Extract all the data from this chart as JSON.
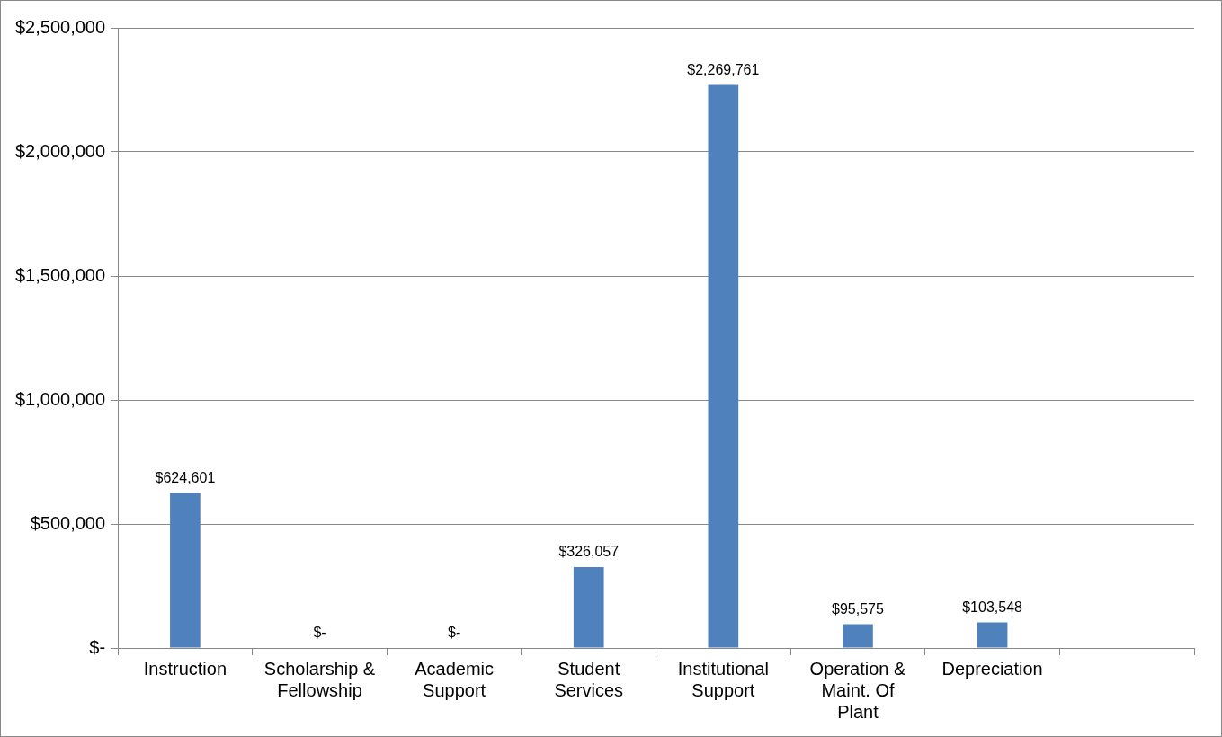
{
  "chart_data": {
    "type": "bar",
    "categories": [
      "Instruction",
      "Scholarship & Fellowship",
      "Academic Support",
      "Student Services",
      "Institutional Support",
      "Operation & Maint. Of Plant",
      "Depreciation",
      null
    ],
    "values": [
      624601,
      0,
      0,
      326057,
      2269761,
      95575,
      103548,
      null
    ],
    "value_labels": [
      "$624,601",
      "$-",
      "$-",
      "$326,057",
      "$2,269,761",
      "$95,575",
      "$103,548",
      null
    ],
    "color": "#4f81bd",
    "ylim": [
      0,
      2500000
    ],
    "yticks": [
      {
        "value": 0,
        "label": "$-"
      },
      {
        "value": 500000,
        "label": "$500,000"
      },
      {
        "value": 1000000,
        "label": "$1,000,000"
      },
      {
        "value": 1500000,
        "label": "$1,500,000"
      },
      {
        "value": 2000000,
        "label": "$2,000,000"
      },
      {
        "value": 2500000,
        "label": "$2,500,000"
      }
    ],
    "grid": "y",
    "legend": false
  }
}
